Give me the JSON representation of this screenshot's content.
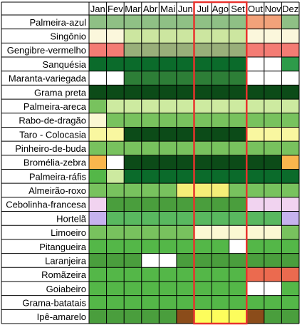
{
  "colors": {
    "bv": "#8fc085",
    "bp": "#f2a27a",
    "cr": "#fbf7dc",
    "lg": "#cce6a0",
    "ol": "#99af7a",
    "rd": "#f47c74",
    "rb": "#2e9b4a",
    "rg": "#0b6b2b",
    "mg": "#2d7e37",
    "dg": "#0c4b18",
    "md": "#78c25e",
    "lc": "#cdeaa0",
    "pl": "#fbf8d3",
    "yl": "#f9f7a0",
    "og": "#f9b64d",
    "gy": "#f5ee78",
    "lv": "#f1d3f0",
    "pv": "#c6b2ee",
    "gr": "#59b85f",
    "ng": "#54b748",
    "fg": "#4a9e3d",
    "ro": "#eb6a4f",
    "br": "#8b4c1a",
    "yb": "#fdfd5c",
    "wh": "#ffffff",
    "highlight": "#e8322d"
  },
  "chart_data": {
    "type": "heatmap",
    "columns": [
      "Jan",
      "Fev",
      "Mar",
      "Abr",
      "Mai",
      "Jun",
      "Jul",
      "Ago",
      "Set",
      "Out",
      "Nov",
      "Dez"
    ],
    "highlighted_columns": [
      "Jul",
      "Ago",
      "Set"
    ],
    "rows": [
      {
        "label": "Palmeira-azul",
        "cells": [
          "bv",
          "bv",
          "bv",
          "bv",
          "bv",
          "bv",
          "bv",
          "bv",
          "bv",
          "bp",
          "bp",
          "bv"
        ]
      },
      {
        "label": "Singônio",
        "cells": [
          "cr",
          "cr",
          "lg",
          "lg",
          "lg",
          "lg",
          "lg",
          "lg",
          "lg",
          "cr",
          "cr",
          "cr"
        ]
      },
      {
        "label": "Gengibre-vermelho",
        "cells": [
          "rd",
          "rd",
          "ol",
          "ol",
          "ol",
          "ol",
          "ol",
          "ol",
          "ol",
          "rd",
          "rd",
          "rd"
        ]
      },
      {
        "label": "Sanquésia",
        "cells": [
          "rg",
          "rg",
          "rg",
          "rg",
          "rg",
          "rg",
          "rg",
          "rg",
          "rg",
          "wh",
          "wh",
          "rb"
        ]
      },
      {
        "label": "Maranta-variegada",
        "cells": [
          "wh",
          "wh",
          "mg",
          "mg",
          "mg",
          "mg",
          "mg",
          "mg",
          "mg",
          "wh",
          "wh",
          "wh"
        ]
      },
      {
        "label": "Grama preta",
        "cells": [
          "dg",
          "dg",
          "dg",
          "dg",
          "dg",
          "dg",
          "dg",
          "dg",
          "dg",
          "dg",
          "dg",
          "dg"
        ]
      },
      {
        "label": "Palmeira-areca",
        "cells": [
          "md",
          "lc",
          "lc",
          "lc",
          "lc",
          "lc",
          "lc",
          "lc",
          "lc",
          "lc",
          "lc",
          "lc"
        ]
      },
      {
        "label": "Rabo-de-dragão",
        "cells": [
          "pl",
          "md",
          "md",
          "md",
          "md",
          "md",
          "md",
          "md",
          "md",
          "md",
          "md",
          "md"
        ]
      },
      {
        "label": "Taro - Colocasia",
        "cells": [
          "yl",
          "yl",
          "dg",
          "dg",
          "dg",
          "dg",
          "dg",
          "dg",
          "dg",
          "yl",
          "yl",
          "yl"
        ]
      },
      {
        "label": "Pinheiro-de-buda",
        "cells": [
          "md",
          "md",
          "md",
          "md",
          "md",
          "md",
          "md",
          "md",
          "md",
          "md",
          "md",
          "md"
        ]
      },
      {
        "label": "Bromélia-zebra",
        "cells": [
          "og",
          "wh",
          "dg",
          "dg",
          "dg",
          "dg",
          "dg",
          "dg",
          "dg",
          "dg",
          "dg",
          "og"
        ]
      },
      {
        "label": "Palmeira-ráfis",
        "cells": [
          "ng",
          "lc",
          "rg",
          "rg",
          "rg",
          "rg",
          "rg",
          "rg",
          "rg",
          "rg",
          "rg",
          "rg"
        ]
      },
      {
        "label": "Almeirão-roxo",
        "cells": [
          "md",
          "md",
          "md",
          "md",
          "md",
          "gy",
          "gy",
          "gy",
          "md",
          "md",
          "md",
          "md"
        ]
      },
      {
        "label": "Cebolinha-francesa",
        "cells": [
          "lv",
          "fg",
          "fg",
          "fg",
          "fg",
          "fg",
          "fg",
          "fg",
          "fg",
          "lv",
          "lv",
          "lv"
        ]
      },
      {
        "label": "Hortelã",
        "cells": [
          "pv",
          "gr",
          "gr",
          "gr",
          "gr",
          "gr",
          "gr",
          "gr",
          "gr",
          "gr",
          "gr",
          "pv"
        ]
      },
      {
        "label": "Limoeiro",
        "cells": [
          "md",
          "md",
          "md",
          "md",
          "md",
          "md",
          "pl",
          "pl",
          "pl",
          "pl",
          "pl",
          "md"
        ]
      },
      {
        "label": "Pitangueira",
        "cells": [
          "ng",
          "ng",
          "ng",
          "ng",
          "ng",
          "ng",
          "ng",
          "ng",
          "wh",
          "ng",
          "ng",
          "ng"
        ]
      },
      {
        "label": "Laranjeira",
        "cells": [
          "fg",
          "fg",
          "fg",
          "wh",
          "wh",
          "fg",
          "fg",
          "fg",
          "fg",
          "fg",
          "fg",
          "fg"
        ]
      },
      {
        "label": "Romãzeira",
        "cells": [
          "ng",
          "ng",
          "ng",
          "ng",
          "ng",
          "ng",
          "ng",
          "ng",
          "ng",
          "ro",
          "ro",
          "ro"
        ]
      },
      {
        "label": "Goiabeiro",
        "cells": [
          "ng",
          "ng",
          "ng",
          "ng",
          "ng",
          "ng",
          "ng",
          "ng",
          "ng",
          "wh",
          "wh",
          "ng"
        ]
      },
      {
        "label": "Grama-batatais",
        "cells": [
          "ng",
          "ng",
          "ng",
          "ng",
          "ng",
          "ng",
          "ng",
          "ng",
          "ng",
          "ng",
          "ng",
          "ng"
        ]
      },
      {
        "label": "Ipê-amarelo",
        "cells": [
          "fg",
          "fg",
          "fg",
          "fg",
          "fg",
          "br",
          "yb",
          "yb",
          "yb",
          "br",
          "fg",
          "fg"
        ]
      }
    ]
  }
}
